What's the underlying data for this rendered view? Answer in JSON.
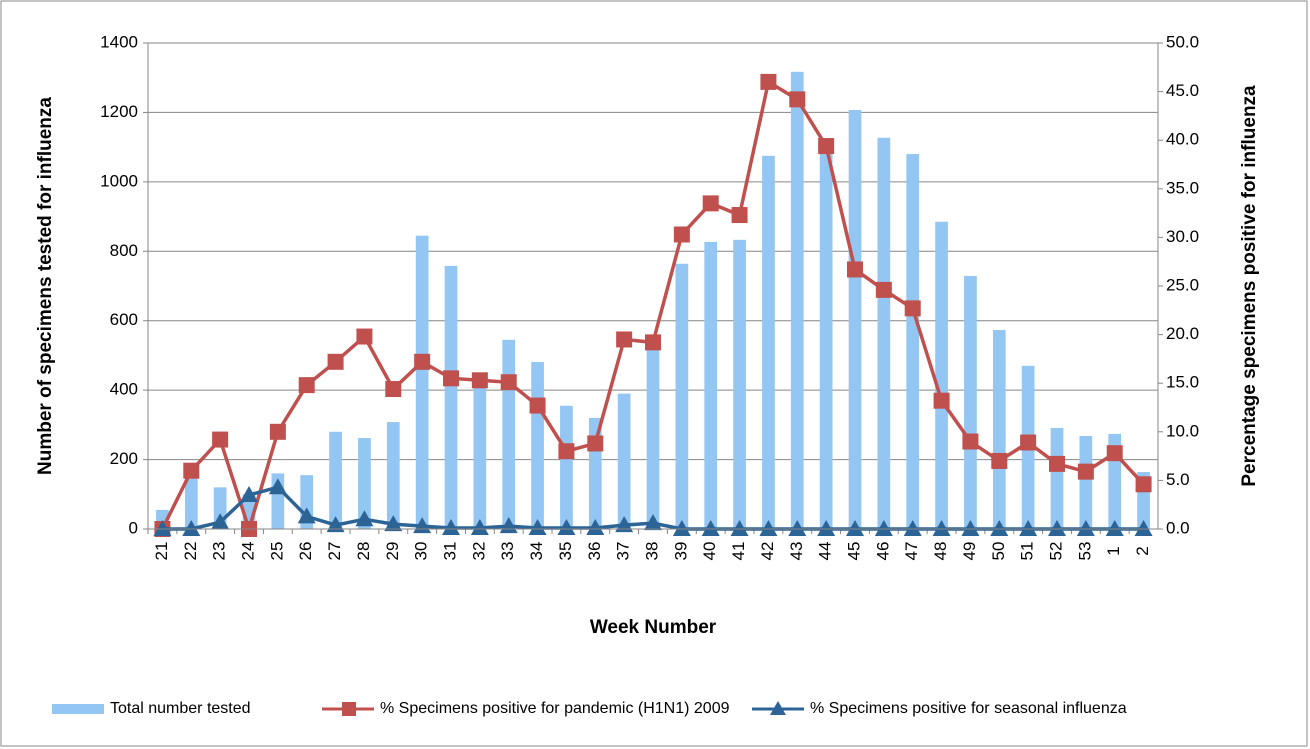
{
  "chart_data": {
    "type": "bar-line",
    "x_label": "Week Number",
    "y_label": "Number of specimens tested for influenza",
    "y2_label": "Percentage specimens positive for influenza",
    "categories": [
      "21",
      "22",
      "23",
      "24",
      "25",
      "26",
      "27",
      "28",
      "29",
      "30",
      "31",
      "32",
      "33",
      "34",
      "35",
      "36",
      "37",
      "38",
      "39",
      "40",
      "41",
      "42",
      "43",
      "44",
      "45",
      "46",
      "47",
      "48",
      "49",
      "50",
      "51",
      "52",
      "53",
      "1",
      "2"
    ],
    "series": [
      {
        "name": "Total number tested",
        "type": "bar",
        "color": "#93C6F2",
        "values": [
          55,
          190,
          120,
          100,
          160,
          155,
          280,
          262,
          308,
          845,
          758,
          420,
          545,
          481,
          355,
          320,
          390,
          520,
          764,
          827,
          833,
          1075,
          1317,
          1100,
          1207,
          1127,
          1080,
          885,
          729,
          573,
          470,
          291,
          268,
          274,
          164
        ]
      },
      {
        "name": "% Specimens positive for pandemic (H1N1) 2009",
        "type": "line",
        "marker": "square",
        "axis": "y2",
        "color": "#C0504D",
        "values": [
          0,
          6.0,
          9.2,
          0,
          10.0,
          14.8,
          17.2,
          19.8,
          14.4,
          17.2,
          15.5,
          15.3,
          15.1,
          12.7,
          8.0,
          8.8,
          19.5,
          19.2,
          30.3,
          33.5,
          32.3,
          46.0,
          44.2,
          39.4,
          26.7,
          24.6,
          22.7,
          13.2,
          9.0,
          7.0,
          8.9,
          6.7,
          5.9,
          7.8,
          4.6
        ]
      },
      {
        "name": "% Specimens positive for seasonal influenza",
        "type": "line",
        "marker": "triangle",
        "axis": "y2",
        "color": "#2C6496",
        "values": [
          0,
          0,
          0.7,
          3.5,
          4.3,
          1.3,
          0.4,
          1.0,
          0.5,
          0.3,
          0.1,
          0.1,
          0.3,
          0.1,
          0.1,
          0.1,
          0.4,
          0.6,
          0,
          0,
          0,
          0,
          0,
          0,
          0,
          0,
          0,
          0,
          0,
          0,
          0,
          0,
          0,
          0,
          0
        ]
      }
    ],
    "ylim": [
      0,
      1400
    ],
    "yticks": [
      0,
      200,
      400,
      600,
      800,
      1000,
      1200,
      1400
    ],
    "y2lim": [
      0,
      50
    ],
    "y2ticks": [
      {
        "value": 0,
        "label": "0.0"
      },
      {
        "value": 5,
        "label": "5.0"
      },
      {
        "value": 10,
        "label": "10.0"
      },
      {
        "value": 15,
        "label": "15.0"
      },
      {
        "value": 20,
        "label": "20.0"
      },
      {
        "value": 25,
        "label": "25.0"
      },
      {
        "value": 30,
        "label": "30.0"
      },
      {
        "value": 35,
        "label": "35.0"
      },
      {
        "value": 40,
        "label": "40.0"
      },
      {
        "value": 45,
        "label": "45.0"
      },
      {
        "value": 50,
        "label": "50.0"
      }
    ],
    "grid": true,
    "legend": "bottom"
  }
}
